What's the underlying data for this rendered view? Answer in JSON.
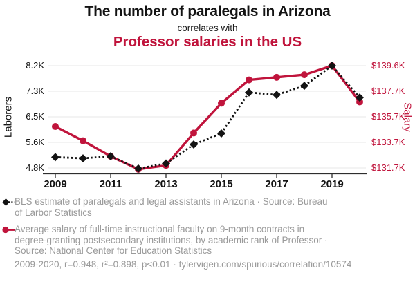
{
  "header": {
    "title": "The number of paralegals in Arizona",
    "connector": "correlates with",
    "subtitle": "Professor salaries in the US"
  },
  "colors": {
    "accent_red": "#c0143c",
    "series_black": "#131313",
    "muted_text": "#9a9a9a",
    "grid_line": "#e7e7e7",
    "axis_line": "#2e2e2e",
    "background": "#ffffff"
  },
  "chart_data": {
    "type": "line",
    "title": "The number of paralegals in Arizona correlates with Professor salaries in the US",
    "x": [
      2009,
      2010,
      2011,
      2012,
      2013,
      2014,
      2015,
      2016,
      2017,
      2018,
      2019,
      2020
    ],
    "x_ticks": [
      2009,
      2011,
      2013,
      2015,
      2017,
      2019
    ],
    "grid": "horizontal",
    "legend_position": "bottom",
    "left_axis": {
      "label": "Laborers",
      "min": 4800,
      "max": 8200,
      "ticks": [
        "8.2K",
        "7.3K",
        "6.5K",
        "5.6K",
        "4.8K"
      ]
    },
    "right_axis": {
      "label": "Salary",
      "min": 131700,
      "max": 139600,
      "ticks": [
        "$139.6K",
        "$137.7K",
        "$135.7K",
        "$133.7K",
        "$131.7K"
      ]
    },
    "series": [
      {
        "name": "BLS estimate of paralegals and legal assistants in Arizona",
        "axis": "left",
        "color": "#131313",
        "line_style": "dotted",
        "marker": "diamond",
        "values": [
          5160,
          5120,
          5190,
          4780,
          4950,
          5580,
          5950,
          7310,
          7230,
          7530,
          8200,
          7140
        ]
      },
      {
        "name": "Average salary of full-time instructional faculty on 9-month contracts in degree-granting postsecondary institutions, by academic rank of Professor",
        "axis": "right",
        "color": "#c0143c",
        "line_style": "solid",
        "marker": "circle",
        "values": [
          134900,
          133800,
          132600,
          131600,
          131900,
          134400,
          136700,
          138500,
          138700,
          138900,
          139600,
          136800
        ]
      }
    ]
  },
  "legend": {
    "entries": [
      {
        "marker": "black-diamond-dotted",
        "text": "BLS estimate of paralegals and legal assistants in Arizona · Source: Bureau\nof Larbor Statistics"
      },
      {
        "marker": "red-circle-solid",
        "text": "Average salary of full-time instructional faculty on 9-month contracts in\ndegree-granting postsecondary institutions, by academic rank of Professor ·\nSource: National Center for Education Statistics"
      }
    ]
  },
  "footer": {
    "stats": "2009-2020, r=0.948, r²=0.898, p<0.01",
    "separator": " · ",
    "url": "tylervigen.com/spurious/correlation/10574"
  }
}
